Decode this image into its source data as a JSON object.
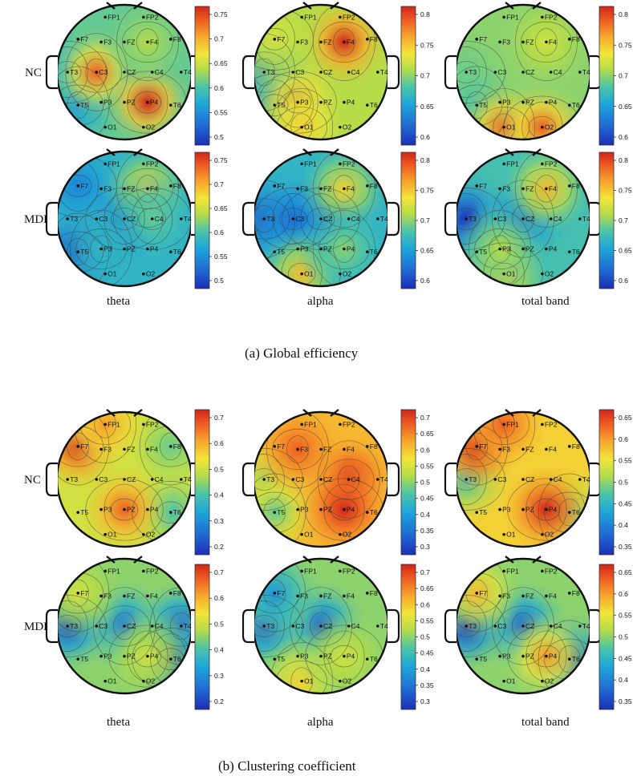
{
  "figure": {
    "panels": [
      {
        "caption": "(a) Global efficiency",
        "rows": [
          "NC",
          "MDD"
        ],
        "bands": [
          "theta",
          "alpha",
          "total band"
        ],
        "colorbars": [
          [
            "0.75",
            "0.7",
            "0.65",
            "0.6",
            "0.55",
            "0.5"
          ],
          [
            "0.8",
            "0.75",
            "0.7",
            "0.65",
            "0.6"
          ],
          [
            "0.8",
            "0.75",
            "0.7",
            "0.65",
            "0.6"
          ]
        ]
      },
      {
        "caption": "(b) Clustering coefficient",
        "rows": [
          "NC",
          "MDD"
        ],
        "bands": [
          "theta",
          "alpha",
          "total band"
        ],
        "colorbars": [
          [
            "0.7",
            "0.6",
            "0.5",
            "0.4",
            "0.3",
            "0.2"
          ],
          [
            "0.7",
            "0.65",
            "0.6",
            "0.55",
            "0.5",
            "0.45",
            "0.4",
            "0.35",
            "0.3"
          ],
          [
            "0.65",
            "0.6",
            "0.55",
            "0.5",
            "0.45",
            "0.4",
            "0.35"
          ]
        ]
      }
    ],
    "electrodes": [
      "FP1",
      "FP2",
      "F7",
      "F3",
      "FZ",
      "F4",
      "F8",
      "T3",
      "C3",
      "CZ",
      "C4",
      "T4",
      "T5",
      "P3",
      "PZ",
      "P4",
      "T6",
      "O1",
      "O2"
    ],
    "colors": {
      "low": "#1c2fb8",
      "mid": "#f2e63a",
      "high": "#d8261c",
      "outline": "#111111"
    },
    "maps": [
      [
        {
          "base": 0.45,
          "hot": [
            [
              "C3",
              0.9
            ],
            [
              "P4",
              1.0
            ],
            [
              "F4",
              0.55
            ]
          ],
          "cold": [
            [
              "T3",
              0.3
            ],
            [
              "T5",
              0.25
            ]
          ]
        },
        {
          "base": 0.55,
          "hot": [
            [
              "F4",
              1.0
            ],
            [
              "P3",
              0.8
            ],
            [
              "O1",
              0.7
            ],
            [
              "F7",
              0.6
            ]
          ],
          "cold": [
            [
              "T3",
              0.2
            ],
            [
              "T5",
              0.2
            ]
          ]
        },
        {
          "base": 0.5,
          "hot": [
            [
              "O1",
              0.9
            ],
            [
              "O2",
              0.9
            ],
            [
              "F4",
              0.6
            ]
          ],
          "cold": [
            [
              "T3",
              0.45
            ],
            [
              "T5",
              0.4
            ]
          ]
        }
      ],
      [
        {
          "base": 0.35,
          "hot": [
            [
              "F4",
              0.7
            ],
            [
              "C4",
              0.45
            ],
            [
              "P3",
              0.35
            ]
          ],
          "cold": [
            [
              "CZ",
              0.1
            ],
            [
              "T5",
              0.0
            ],
            [
              "F7",
              0.2
            ]
          ]
        },
        {
          "base": 0.35,
          "hot": [
            [
              "F4",
              0.7
            ],
            [
              "O1",
              0.75
            ],
            [
              "P4",
              0.5
            ]
          ],
          "cold": [
            [
              "CZ",
              0.1
            ],
            [
              "T3",
              0.05
            ],
            [
              "C3",
              0.15
            ]
          ]
        },
        {
          "base": 0.4,
          "hot": [
            [
              "F4",
              0.75
            ],
            [
              "O1",
              0.7
            ],
            [
              "P3",
              0.55
            ]
          ],
          "cold": [
            [
              "T3",
              0.0
            ],
            [
              "CZ",
              0.15
            ]
          ]
        }
      ],
      [
        {
          "base": 0.6,
          "hot": [
            [
              "F7",
              1.0
            ],
            [
              "PZ",
              0.9
            ],
            [
              "FP1",
              0.8
            ]
          ],
          "cold": [
            [
              "T6",
              0.4
            ],
            [
              "F8",
              0.45
            ]
          ]
        },
        {
          "base": 0.75,
          "hot": [
            [
              "C4",
              1.0
            ],
            [
              "P4",
              1.0
            ],
            [
              "F3",
              0.9
            ]
          ],
          "cold": [
            [
              "T3",
              0.5
            ],
            [
              "T5",
              0.45
            ]
          ]
        },
        {
          "base": 0.7,
          "hot": [
            [
              "F7",
              1.0
            ],
            [
              "P4",
              1.0
            ],
            [
              "FP1",
              0.9
            ]
          ],
          "cold": [
            [
              "T3",
              0.35
            ],
            [
              "T6",
              0.45
            ]
          ]
        }
      ],
      [
        {
          "base": 0.5,
          "hot": [
            [
              "F7",
              0.6
            ],
            [
              "P4",
              0.6
            ]
          ],
          "cold": [
            [
              "CZ",
              0.15
            ],
            [
              "T3",
              0.05
            ],
            [
              "T4",
              0.1
            ],
            [
              "T6",
              0.05
            ]
          ]
        },
        {
          "base": 0.5,
          "hot": [
            [
              "O1",
              0.7
            ],
            [
              "P4",
              0.6
            ]
          ],
          "cold": [
            [
              "CZ",
              0.1
            ],
            [
              "T3",
              0.1
            ],
            [
              "F7",
              0.25
            ]
          ]
        },
        {
          "base": 0.5,
          "hot": [
            [
              "F7",
              0.75
            ],
            [
              "P4",
              0.8
            ]
          ],
          "cold": [
            [
              "CZ",
              0.1
            ],
            [
              "T3",
              0.0
            ],
            [
              "T6",
              0.05
            ]
          ]
        }
      ]
    ]
  }
}
